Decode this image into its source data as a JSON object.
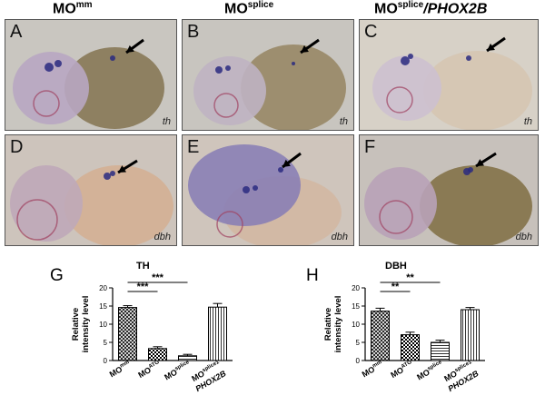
{
  "headers": [
    {
      "base": "MO",
      "sup": "mm",
      "extra": ""
    },
    {
      "base": "MO",
      "sup": "splice",
      "extra": ""
    },
    {
      "base": "MO",
      "sup": "splice",
      "extra": "/PHOX2B"
    }
  ],
  "panels": [
    {
      "letter": "A",
      "gene": "th",
      "bg": "#c9c6c0"
    },
    {
      "letter": "B",
      "gene": "th",
      "bg": "#c8c5bf"
    },
    {
      "letter": "C",
      "gene": "th",
      "bg": "#d7d1c7"
    },
    {
      "letter": "D",
      "gene": "dbh",
      "bg": "#cdc4bc"
    },
    {
      "letter": "E",
      "gene": "dbh",
      "bg": "#cfc5bc"
    },
    {
      "letter": "F",
      "gene": "dbh",
      "bg": "#c7c1bb"
    }
  ],
  "figure_letters": {
    "g": "G",
    "h": "H"
  },
  "chart_data": [
    {
      "type": "bar",
      "title": "TH",
      "ylabel": "Relative\nintensity level",
      "ylim": [
        0,
        20
      ],
      "yticks": [
        0,
        5,
        10,
        15,
        20
      ],
      "categories": [
        {
          "base": "MO",
          "sup": "mm",
          "extra": ""
        },
        {
          "base": "MO",
          "sup": "ATG",
          "extra": ""
        },
        {
          "base": "MO",
          "sup": "splice",
          "extra": ""
        },
        {
          "base": "MO",
          "sup": "splice1",
          "extra": "PHOX2B"
        }
      ],
      "values": [
        14.6,
        3.3,
        1.3,
        14.7
      ],
      "errors": [
        0.5,
        0.5,
        0.4,
        1.0
      ],
      "significance": [
        "***",
        "***"
      ]
    },
    {
      "type": "bar",
      "title": "DBH",
      "ylabel": "Relative\nintensity level",
      "ylim": [
        0,
        20
      ],
      "yticks": [
        0,
        5,
        10,
        15,
        20
      ],
      "categories": [
        {
          "base": "MO",
          "sup": "mm",
          "extra": ""
        },
        {
          "base": "MO",
          "sup": "ATG",
          "extra": ""
        },
        {
          "base": "MO",
          "sup": "splice",
          "extra": ""
        },
        {
          "base": "MO",
          "sup": "splice1",
          "extra": "PHOX2B"
        }
      ],
      "values": [
        13.6,
        7.1,
        5.0,
        14.0
      ],
      "errors": [
        0.8,
        0.7,
        0.6,
        0.6
      ],
      "significance": [
        "**",
        "**"
      ]
    }
  ]
}
